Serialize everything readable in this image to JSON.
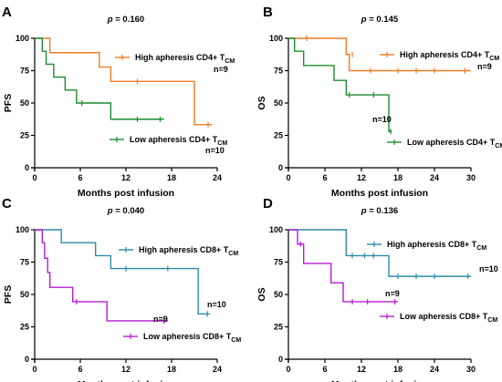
{
  "chart_data": [
    {
      "type": "line",
      "panel": "A",
      "pvalue": "0.160",
      "xlabel": "Months post infusion",
      "ylabel": "PFS",
      "xlim": [
        0,
        24
      ],
      "ylim": [
        0,
        100
      ],
      "xticks": [
        0,
        6,
        12,
        18,
        24
      ],
      "yticks": [
        0,
        25,
        50,
        75,
        100
      ],
      "legend_placement": "right",
      "series": [
        {
          "name": "High apheresis CD4+ T",
          "name_sub": "CM",
          "n_label": "n=9",
          "color": "#f47b20",
          "steps": [
            [
              0,
              100
            ],
            [
              2,
              88.9
            ],
            [
              8.5,
              77.8
            ],
            [
              10,
              66.7
            ],
            [
              21,
              33.3
            ],
            [
              23.3,
              33.3
            ]
          ],
          "censors": [
            [
              13.5,
              66.7
            ],
            [
              22.8,
              33.3
            ]
          ]
        },
        {
          "name": "Low apheresis CD4+ T",
          "name_sub": "CM",
          "n_label": "n=10",
          "color": "#1e8c2e",
          "steps": [
            [
              0,
              100
            ],
            [
              1,
              90
            ],
            [
              1.5,
              80
            ],
            [
              2.5,
              70
            ],
            [
              4,
              60
            ],
            [
              5.5,
              50
            ],
            [
              10,
              37.5
            ],
            [
              17,
              37.5
            ]
          ],
          "censors": [
            [
              6.2,
              50
            ],
            [
              13.5,
              37.5
            ],
            [
              16.5,
              37.5
            ]
          ]
        }
      ]
    },
    {
      "type": "line",
      "panel": "B",
      "pvalue": "0.145",
      "xlabel": "Months post infusion",
      "ylabel": "OS",
      "xlim": [
        0,
        30
      ],
      "ylim": [
        0,
        100
      ],
      "xticks": [
        0,
        6,
        12,
        18,
        24,
        30
      ],
      "yticks": [
        0,
        25,
        50,
        75,
        100
      ],
      "legend_placement": "right",
      "series": [
        {
          "name": "High apheresis CD4+ T",
          "name_sub": "CM",
          "n_label": "n=9",
          "color": "#f47b20",
          "steps": [
            [
              0,
              100
            ],
            [
              9.5,
              87.5
            ],
            [
              10,
              75
            ],
            [
              30,
              75
            ]
          ],
          "censors": [
            [
              3,
              100
            ],
            [
              10.5,
              87.5
            ],
            [
              13.5,
              75
            ],
            [
              18,
              75
            ],
            [
              21,
              75
            ],
            [
              24,
              75
            ],
            [
              29,
              75
            ]
          ]
        },
        {
          "name": "Low apheresis CD4+ T",
          "name_sub": "CM",
          "n_label": "n=10",
          "color": "#1e8c2e",
          "steps": [
            [
              0,
              100
            ],
            [
              1,
              90
            ],
            [
              2.5,
              79
            ],
            [
              7.5,
              67.5
            ],
            [
              9.5,
              56.3
            ],
            [
              16.5,
              28
            ],
            [
              17,
              28
            ]
          ],
          "censors": [
            [
              10,
              56.3
            ],
            [
              14,
              56.3
            ],
            [
              16.8,
              28
            ]
          ]
        }
      ]
    },
    {
      "type": "line",
      "panel": "C",
      "pvalue": "0.040",
      "xlabel": "Months post infusion",
      "ylabel": "PFS",
      "xlim": [
        0,
        24
      ],
      "ylim": [
        0,
        100
      ],
      "xticks": [
        0,
        6,
        12,
        18,
        24
      ],
      "yticks": [
        0,
        25,
        50,
        75,
        100
      ],
      "legend_placement": "right",
      "series": [
        {
          "name": "High apheresis CD8+ T",
          "name_sub": "CM",
          "n_label": "n=10",
          "color": "#2b8ca8",
          "steps": [
            [
              0,
              100
            ],
            [
              3.5,
              90
            ],
            [
              8,
              80
            ],
            [
              10,
              70
            ],
            [
              21.5,
              35
            ],
            [
              23,
              35
            ]
          ],
          "censors": [
            [
              12,
              70
            ],
            [
              17.5,
              70
            ],
            [
              22.7,
              35
            ]
          ]
        },
        {
          "name": "Low apheresis CD8+ T",
          "name_sub": "CM",
          "n_label": "n=9",
          "color": "#b41fd2",
          "steps": [
            [
              0,
              100
            ],
            [
              1,
              90
            ],
            [
              1.3,
              78
            ],
            [
              1.7,
              67
            ],
            [
              2,
              55.5
            ],
            [
              5,
              44.4
            ],
            [
              9.5,
              29.6
            ],
            [
              17.5,
              29.6
            ]
          ],
          "censors": [
            [
              5.5,
              44.4
            ],
            [
              17,
              29.6
            ]
          ]
        }
      ]
    },
    {
      "type": "line",
      "panel": "D",
      "pvalue": "0.136",
      "xlabel": "Months post infusion",
      "ylabel": "OS",
      "xlim": [
        0,
        30
      ],
      "ylim": [
        0,
        100
      ],
      "xticks": [
        0,
        6,
        12,
        18,
        24,
        30
      ],
      "yticks": [
        0,
        25,
        50,
        75,
        100
      ],
      "legend_placement": "right",
      "series": [
        {
          "name": "High apheresis CD8+ T",
          "name_sub": "CM",
          "n_label": "n=10",
          "color": "#2b8ca8",
          "steps": [
            [
              0,
              100
            ],
            [
              9.5,
              80
            ],
            [
              16.5,
              64
            ],
            [
              30,
              64
            ]
          ],
          "censors": [
            [
              10.5,
              80
            ],
            [
              12.5,
              80
            ],
            [
              14,
              80
            ],
            [
              18,
              64
            ],
            [
              21,
              64
            ],
            [
              24,
              64
            ],
            [
              29.5,
              64
            ]
          ]
        },
        {
          "name": "Low apheresis CD8+ T",
          "name_sub": "CM",
          "n_label": "n=9",
          "color": "#b41fd2",
          "steps": [
            [
              0,
              100
            ],
            [
              1.5,
              88.9
            ],
            [
              2.5,
              74
            ],
            [
              7,
              59
            ],
            [
              9,
              44.4
            ],
            [
              18,
              44.4
            ]
          ],
          "censors": [
            [
              2,
              88.9
            ],
            [
              10.5,
              44.4
            ],
            [
              13,
              44.4
            ],
            [
              17.5,
              44.4
            ]
          ]
        }
      ]
    }
  ]
}
